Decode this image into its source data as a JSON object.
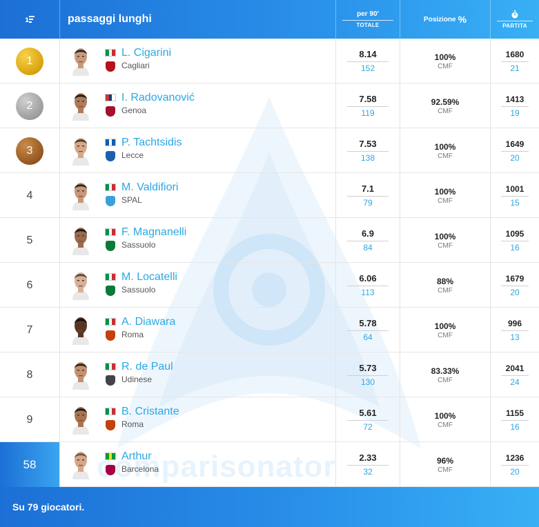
{
  "header": {
    "title": "passaggi lunghi",
    "per90_label": "per 90'",
    "totale_label": "TOTALE",
    "posizione_label": "Posizione",
    "partita_label": "PARTITA",
    "sort_icon": "sort-descending-icon",
    "percent_icon": "percent-icon",
    "stopwatch_icon": "stopwatch-icon"
  },
  "rows": [
    {
      "rank": "1",
      "medal": "gold",
      "name": "L. Cigarini",
      "club": "Cagliari",
      "per90": "8.14",
      "total": "152",
      "position_pct": "100%",
      "position": "CMF",
      "minutes": "1680",
      "matches": "21"
    },
    {
      "rank": "2",
      "medal": "silver",
      "name": "I. Radovanović",
      "club": "Genoa",
      "per90": "7.58",
      "total": "119",
      "position_pct": "92.59%",
      "position": "CMF",
      "minutes": "1413",
      "matches": "19"
    },
    {
      "rank": "3",
      "medal": "bronze",
      "name": "P. Tachtsidis",
      "club": "Lecce",
      "per90": "7.53",
      "total": "138",
      "position_pct": "100%",
      "position": "CMF",
      "minutes": "1649",
      "matches": "20"
    },
    {
      "rank": "4",
      "medal": "",
      "name": "M. Valdifiori",
      "club": "SPAL",
      "per90": "7.1",
      "total": "79",
      "position_pct": "100%",
      "position": "CMF",
      "minutes": "1001",
      "matches": "15"
    },
    {
      "rank": "5",
      "medal": "",
      "name": "F. Magnanelli",
      "club": "Sassuolo",
      "per90": "6.9",
      "total": "84",
      "position_pct": "100%",
      "position": "CMF",
      "minutes": "1095",
      "matches": "16"
    },
    {
      "rank": "6",
      "medal": "",
      "name": "M. Locatelli",
      "club": "Sassuolo",
      "per90": "6.06",
      "total": "113",
      "position_pct": "88%",
      "position": "CMF",
      "minutes": "1679",
      "matches": "20"
    },
    {
      "rank": "7",
      "medal": "",
      "name": "A. Diawara",
      "club": "Roma",
      "per90": "5.78",
      "total": "64",
      "position_pct": "100%",
      "position": "CMF",
      "minutes": "996",
      "matches": "13"
    },
    {
      "rank": "8",
      "medal": "",
      "name": "R. de Paul",
      "club": "Udinese",
      "per90": "5.73",
      "total": "130",
      "position_pct": "83.33%",
      "position": "CMF",
      "minutes": "2041",
      "matches": "24"
    },
    {
      "rank": "9",
      "medal": "",
      "name": "B. Cristante",
      "club": "Roma",
      "per90": "5.61",
      "total": "72",
      "position_pct": "100%",
      "position": "CMF",
      "minutes": "1155",
      "matches": "16"
    },
    {
      "rank": "58",
      "medal": "highlight",
      "name": "Arthur",
      "club": "Barcelona",
      "per90": "2.33",
      "total": "32",
      "position_pct": "96%",
      "position": "CMF",
      "minutes": "1236",
      "matches": "20"
    }
  ],
  "flags": [
    "italy-flag-icon",
    "serbia-flag-icon",
    "greece-flag-icon",
    "italy-flag-icon",
    "italy-flag-icon",
    "italy-flag-icon",
    "italy-flag-icon",
    "italy-flag-icon",
    "italy-flag-icon",
    "brazil-flag-icon"
  ],
  "crests": [
    "cagliari-crest-icon",
    "genoa-crest-icon",
    "lecce-crest-icon",
    "spal-crest-icon",
    "sassuolo-crest-icon",
    "sassuolo-crest-icon",
    "roma-crest-icon",
    "udinese-crest-icon",
    "roma-crest-icon",
    "barcelona-crest-icon"
  ],
  "footer": {
    "text": "Su 79 giocatori."
  },
  "watermark": {
    "text": "comparisonator"
  },
  "colors": {
    "accent": "#2aa7e4",
    "header_start": "#1c6fd6",
    "header_end": "#38b0f5",
    "gold": "#d9a30e",
    "silver": "#9d9d9d",
    "bronze": "#94561f"
  }
}
